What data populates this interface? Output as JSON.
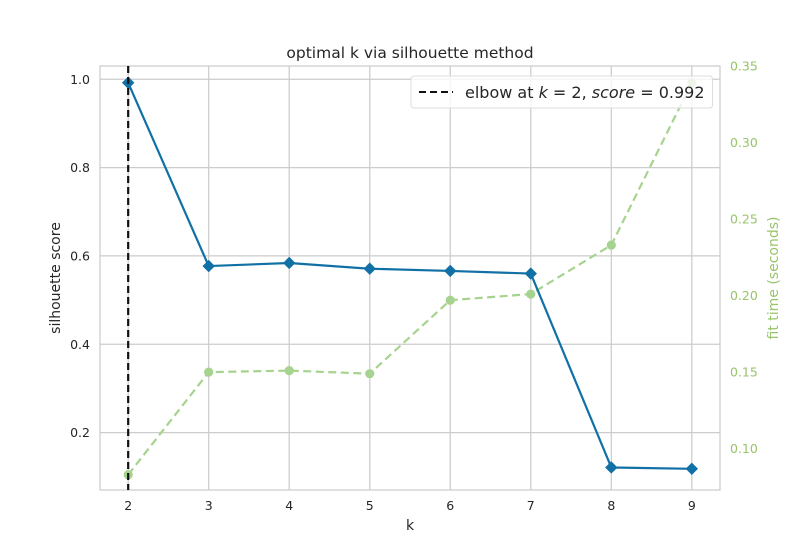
{
  "chart_data": {
    "type": "line",
    "title": "optimal k via silhouette method",
    "xlabel": "k",
    "ylabel": "silhouette score",
    "y2label": "fit time (seconds)",
    "x": [
      2,
      3,
      4,
      5,
      6,
      7,
      8,
      9
    ],
    "xlim": [
      1.65,
      9.35
    ],
    "ylim": [
      0.07,
      1.03
    ],
    "y2lim": [
      0.073,
      0.35
    ],
    "xticks": [
      "2",
      "3",
      "4",
      "5",
      "6",
      "7",
      "8",
      "9"
    ],
    "yticks": [
      0.2,
      0.4,
      0.6,
      0.8,
      1.0
    ],
    "ytick_labels": [
      "0.2",
      "0.4",
      "0.6",
      "0.8",
      "1.0"
    ],
    "y2ticks": [
      0.1,
      0.15,
      0.2,
      0.25,
      0.3,
      0.35
    ],
    "y2tick_labels": [
      "0.10",
      "0.15",
      "0.20",
      "0.25",
      "0.30",
      "0.35"
    ],
    "series": [
      {
        "axis": "left",
        "color": "#1170a5",
        "marker": "diamond",
        "style": "solid",
        "values": [
          0.992,
          0.577,
          0.584,
          0.571,
          0.566,
          0.56,
          0.121,
          0.118
        ]
      },
      {
        "axis": "right",
        "color": "#a6d38f",
        "marker": "circle",
        "style": "dashed",
        "values": [
          0.083,
          0.15,
          0.151,
          0.149,
          0.197,
          0.201,
          0.233,
          0.339
        ]
      }
    ],
    "elbow": {
      "k": 2,
      "color": "#111111",
      "style": "dashed",
      "legend_prefix": "elbow at ",
      "legend_k_var": "k",
      "legend_k_eq": " = 2, ",
      "legend_score_var": "score",
      "legend_score_eq": " = 0.992"
    },
    "legend_position": "top-right",
    "grid": true
  }
}
